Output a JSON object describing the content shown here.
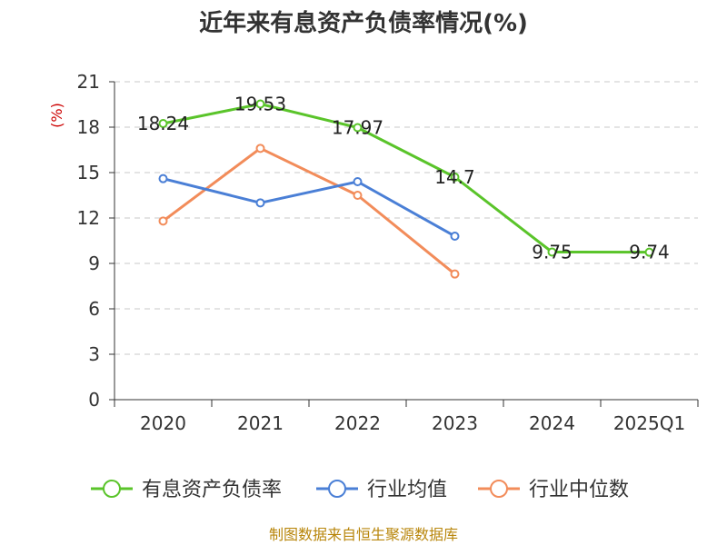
{
  "chart_data": {
    "type": "line",
    "title": "近年来有息资产负债率情况(%)",
    "ylabel": "(%)",
    "categories": [
      "2020",
      "2021",
      "2022",
      "2023",
      "2024",
      "2025Q1"
    ],
    "ylim": [
      0,
      21
    ],
    "yticks": [
      "0",
      "3",
      "6",
      "9",
      "12",
      "15",
      "18",
      "21"
    ],
    "grid": true,
    "legend_position": "bottom",
    "series": [
      {
        "name": "有息资产负债率",
        "color": "#5ac42a",
        "values": [
          18.24,
          19.53,
          17.97,
          14.7,
          9.75,
          9.74
        ],
        "labels": [
          "18.24",
          "19.53",
          "17.97",
          "14.7",
          "9.75",
          "9.74"
        ]
      },
      {
        "name": "行业均值",
        "color": "#4a7fd6",
        "values": [
          14.6,
          13.0,
          14.4,
          10.8,
          null,
          null
        ]
      },
      {
        "name": "行业中位数",
        "color": "#f28c5a",
        "values": [
          11.8,
          16.6,
          13.5,
          8.3,
          null,
          null
        ]
      }
    ],
    "source": "制图数据来自恒生聚源数据库"
  }
}
